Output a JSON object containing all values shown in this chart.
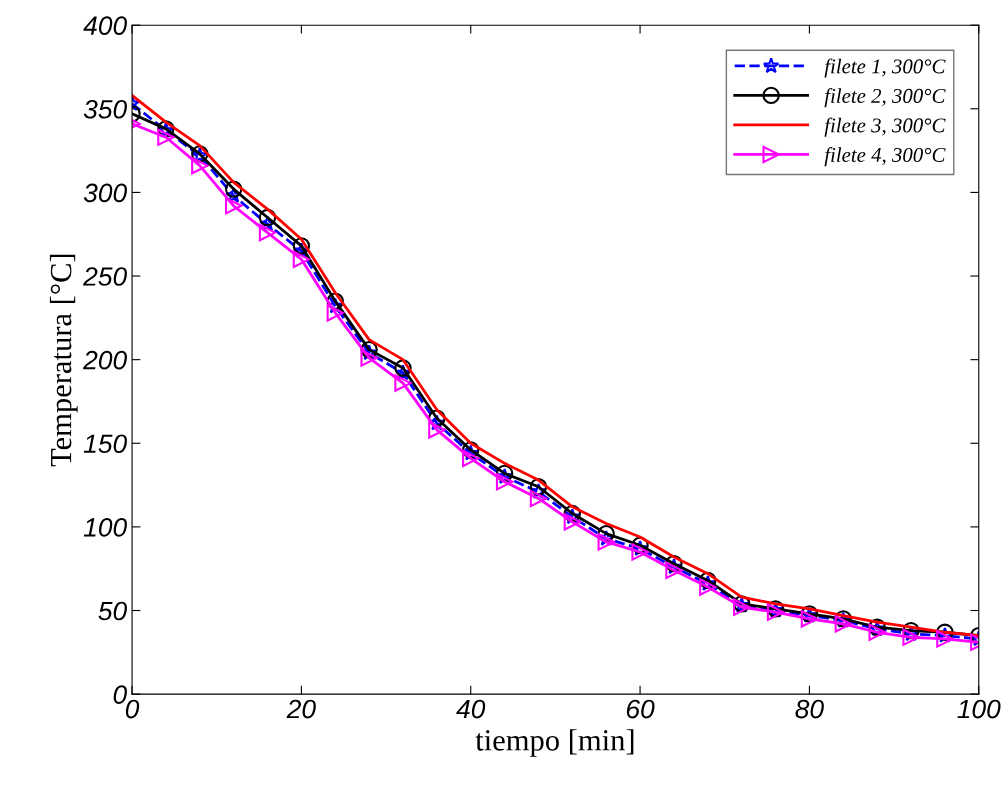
{
  "chart_data": {
    "type": "line",
    "xlabel": "tiempo [min]",
    "ylabel": "Temperatura [°C]",
    "x": [
      0,
      4,
      8,
      12,
      16,
      20,
      24,
      28,
      32,
      36,
      40,
      44,
      48,
      52,
      56,
      60,
      64,
      68,
      72,
      76,
      80,
      84,
      88,
      92,
      96,
      100
    ],
    "xlim": [
      0,
      100
    ],
    "xticks": [
      0,
      20,
      40,
      60,
      80,
      100
    ],
    "ylim": [
      0,
      400
    ],
    "yticks": [
      0,
      50,
      100,
      150,
      200,
      250,
      300,
      350,
      400
    ],
    "grid": false,
    "legend": "top right",
    "series": [
      {
        "name": "filete 1, 300°C",
        "color": "#0000ff",
        "marker": "star",
        "line_style": "dashed",
        "values": [
          353,
          337,
          322,
          298,
          281,
          265,
          232,
          204,
          192,
          162,
          144,
          130,
          121,
          106,
          93,
          87,
          76,
          66,
          53,
          50,
          47,
          44,
          39,
          36,
          35,
          33
        ]
      },
      {
        "name": "filete 2, 300°C",
        "color": "#000000",
        "marker": "circle",
        "line_style": "solid",
        "values": [
          347,
          338,
          323,
          302,
          285,
          268,
          235,
          206,
          195,
          165,
          146,
          132,
          124,
          108,
          96,
          89,
          78,
          68,
          54,
          51,
          48,
          45,
          40,
          38,
          37,
          35
        ]
      },
      {
        "name": "filete 3, 300°C",
        "color": "#ff0000",
        "marker": "none",
        "line_style": "solid",
        "values": [
          358,
          342,
          328,
          306,
          290,
          272,
          240,
          212,
          200,
          170,
          150,
          138,
          128,
          112,
          102,
          94,
          82,
          72,
          58,
          54,
          51,
          47,
          43,
          40,
          37,
          35
        ]
      },
      {
        "name": "filete 4, 300°C",
        "color": "#ff00ff",
        "marker": "triangle",
        "line_style": "solid",
        "values": [
          341,
          333,
          316,
          292,
          276,
          260,
          228,
          201,
          186,
          158,
          141,
          127,
          117,
          103,
          91,
          85,
          74,
          64,
          52,
          49,
          45,
          42,
          37,
          34,
          33,
          31
        ]
      }
    ]
  }
}
